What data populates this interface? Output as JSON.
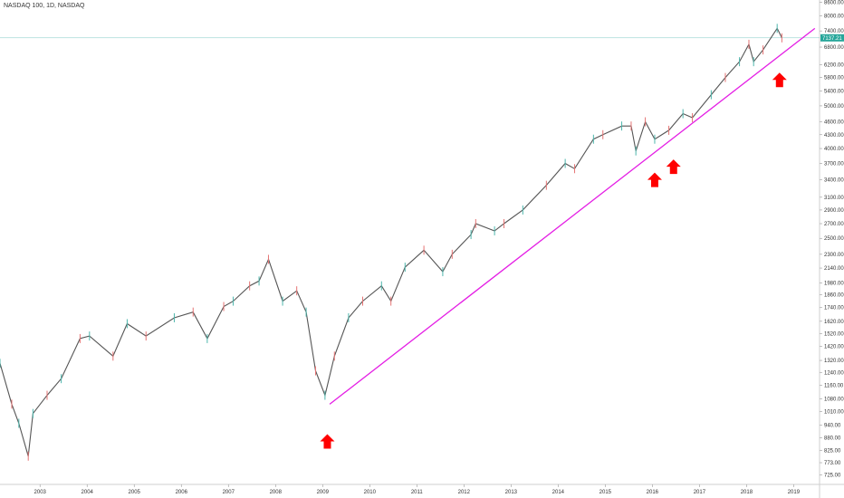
{
  "header": {
    "title": "NASDAQ 100, 1D, NASDAQ"
  },
  "colors": {
    "trendline": "#e41ee4",
    "arrow": "#ff0000",
    "badge": "#26a69a",
    "candle": "#555555"
  },
  "chart_data": {
    "type": "line",
    "title": "NASDAQ 100, 1D, NASDAQ",
    "scale": "log",
    "ylim": [
      690,
      8700
    ],
    "xlim": [
      2002.2,
      2019.6
    ],
    "y_ticks": [
      "8600.00",
      "8000.00",
      "7400.00",
      "6800.00",
      "6200.00",
      "5800.00",
      "5400.00",
      "5000.00",
      "4600.00",
      "4300.00",
      "4000.00",
      "3700.00",
      "3400.00",
      "3100.00",
      "2900.00",
      "2700.00",
      "2500.00",
      "2300.00",
      "2140.00",
      "1980.00",
      "1860.00",
      "1740.00",
      "1620.00",
      "1520.00",
      "1420.00",
      "1320.00",
      "1240.00",
      "1160.00",
      "1080.00",
      "1010.00",
      "940.00",
      "880.00",
      "825.00",
      "773.00",
      "725.00"
    ],
    "x_ticks": [
      "2003",
      "2004",
      "2005",
      "2006",
      "2007",
      "2008",
      "2009",
      "2010",
      "2011",
      "2012",
      "2013",
      "2014",
      "2015",
      "2016",
      "2017",
      "2018",
      "2019"
    ],
    "current_price_label": "7137.21",
    "current_price": 7137.21,
    "series": [
      {
        "x": [
          2002.2,
          2002.45,
          2002.6,
          2002.8,
          2002.9,
          2003.2,
          2003.5,
          2003.9,
          2004.1,
          2004.6,
          2004.9,
          2005.3,
          2005.9,
          2006.3,
          2006.6,
          2006.95,
          2007.15,
          2007.5,
          2007.7,
          2007.9,
          2008.2,
          2008.5,
          2008.7,
          2008.9,
          2009.1,
          2009.3,
          2009.6,
          2009.9,
          2010.3,
          2010.5,
          2010.8,
          2011.2,
          2011.6,
          2011.8,
          2012.2,
          2012.3,
          2012.7,
          2012.9,
          2013.3,
          2013.8,
          2014.2,
          2014.4,
          2014.8,
          2015.0,
          2015.4,
          2015.6,
          2015.7,
          2015.9,
          2016.1,
          2016.4,
          2016.7,
          2016.9,
          2017.3,
          2017.6,
          2017.9,
          2018.1,
          2018.2,
          2018.4,
          2018.7,
          2018.8
        ],
        "values": [
          1300,
          1050,
          950,
          800,
          1000,
          1100,
          1200,
          1480,
          1500,
          1350,
          1600,
          1500,
          1650,
          1700,
          1480,
          1750,
          1800,
          1950,
          2000,
          2240,
          1800,
          1900,
          1700,
          1250,
          1100,
          1350,
          1650,
          1800,
          1950,
          1800,
          2150,
          2350,
          2100,
          2300,
          2550,
          2700,
          2600,
          2700,
          2900,
          3300,
          3700,
          3600,
          4200,
          4300,
          4500,
          4500,
          3950,
          4600,
          4200,
          4400,
          4800,
          4700,
          5300,
          5800,
          6300,
          6900,
          6300,
          6700,
          7500,
          7137
        ]
      }
    ],
    "trendline": {
      "x": [
        2009.2,
        2019.5
      ],
      "y": [
        1050,
        7500
      ]
    },
    "arrows": [
      {
        "x": 2009.15,
        "y": 860
      },
      {
        "x": 2016.1,
        "y": 3380
      },
      {
        "x": 2016.5,
        "y": 3620
      },
      {
        "x": 2018.75,
        "y": 5700
      }
    ]
  }
}
